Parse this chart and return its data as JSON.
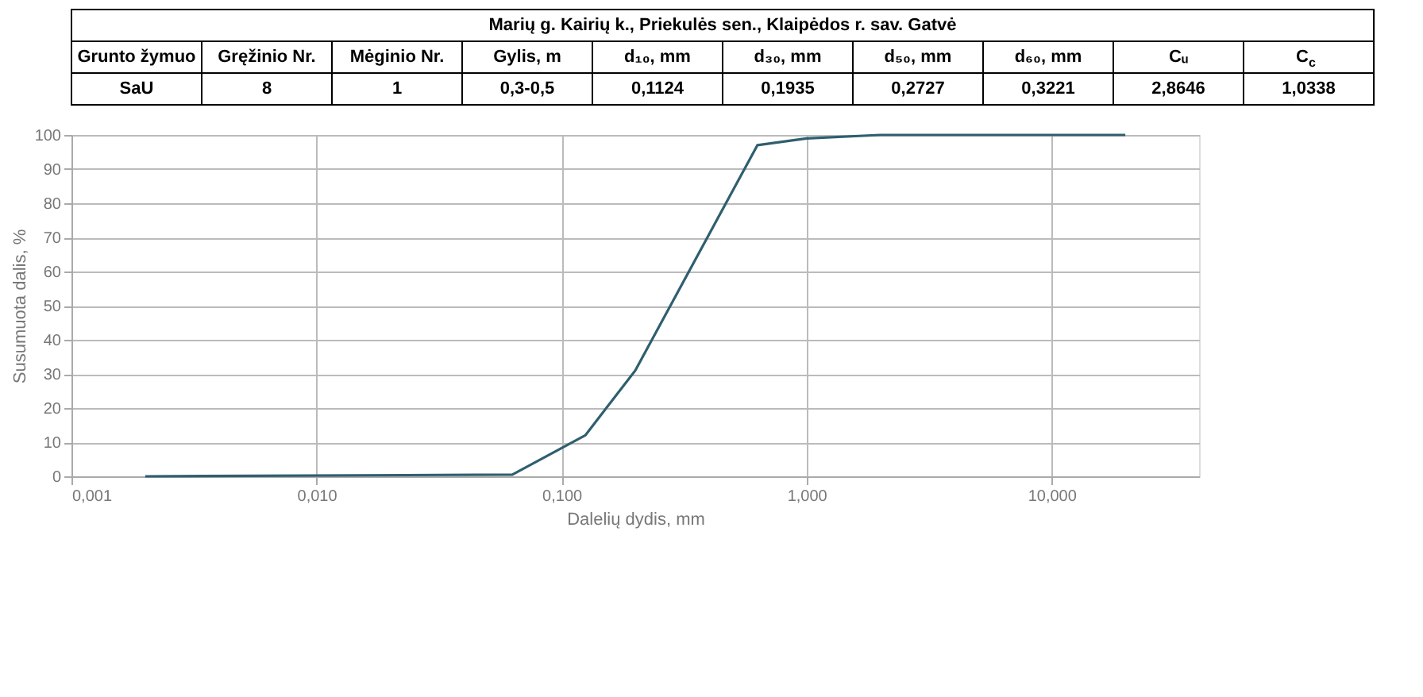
{
  "chart_data": {
    "type": "line",
    "title": "Marių g.  Kairių k., Priekulės sen., Klaipėdos r. sav. Gatvė",
    "annotations": [
      "Grunto žymuo",
      "Gręžinio Nr.",
      "Mėginio Nr.",
      "Gylis, m",
      "d₁₀, mm",
      "d₃₀, mm",
      "d₅₀, mm",
      "d₆₀, mm",
      "Cᵤ",
      "C$_{c}$",
      "SaU",
      "8",
      "1",
      "0,3-0,5",
      "0,1124",
      "0,1935",
      "0,2727",
      "0,3221",
      "2,8646",
      "1,0338"
    ],
    "xlabel": "Dalelių dydis, mm",
    "ylabel": "Susumuota dalis, %",
    "x": [
      0.002,
      0.063,
      0.125,
      0.2,
      0.63,
      1,
      2,
      20
    ],
    "series": [
      {
        "color": "#2f5f6f",
        "values": [
          0,
          0.5,
          12,
          31,
          97,
          99,
          100,
          100
        ]
      }
    ],
    "log": "x",
    "xlim": [
      0.001,
      40
    ],
    "ylim": [
      0,
      100
    ],
    "xticks": [
      {
        "value": 0.001,
        "label": "0,001"
      },
      {
        "value": 0.01,
        "label": "0,010"
      },
      {
        "value": 0.1,
        "label": "0,100"
      },
      {
        "value": 1,
        "label": "1,000"
      },
      {
        "value": 10,
        "label": "10,000"
      }
    ],
    "yticks": [
      0,
      10,
      20,
      30,
      40,
      50,
      60,
      70,
      80,
      90,
      100
    ],
    "grid": true,
    "marker": "none",
    "line_style": "solid"
  }
}
